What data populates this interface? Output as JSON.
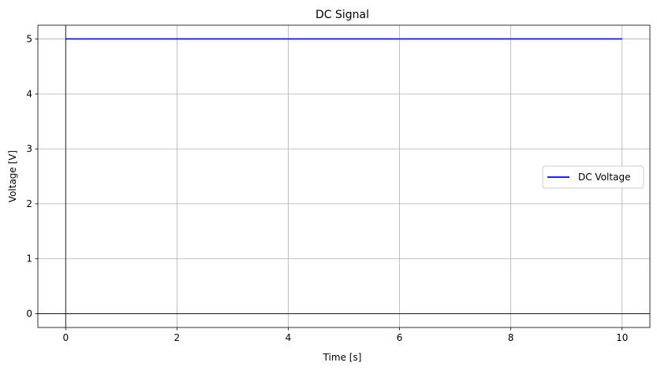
{
  "chart_data": {
    "type": "line",
    "title": "DC Signal",
    "xlabel": "Time [s]",
    "ylabel": "Voltage [V]",
    "xlim": [
      -0.5,
      10.5
    ],
    "ylim": [
      -0.25,
      5.25
    ],
    "xticks": [
      0,
      2,
      4,
      6,
      8,
      10
    ],
    "yticks": [
      0,
      1,
      2,
      3,
      4,
      5
    ],
    "grid": true,
    "reference_lines": {
      "horizontal_at": 0,
      "vertical_at": 0,
      "color": "#000000"
    },
    "legend_position": "center-right",
    "series": [
      {
        "name": "DC Voltage",
        "color": "#0000ff",
        "x": [
          0,
          10
        ],
        "y": [
          5,
          5
        ]
      }
    ]
  }
}
